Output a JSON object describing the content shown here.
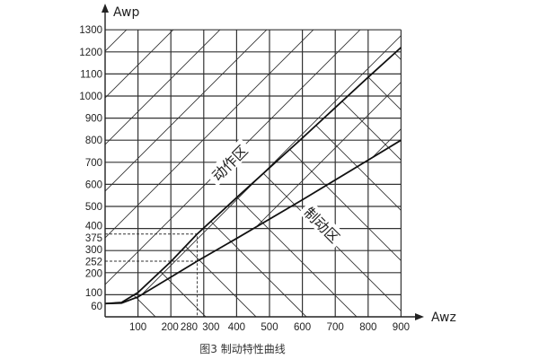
{
  "chart_data": {
    "type": "line",
    "title": "图3  制动特性曲线",
    "xlabel": "Awz",
    "ylabel": "Awp",
    "xlim": [
      0,
      900
    ],
    "ylim": [
      0,
      1300
    ],
    "grid": true,
    "x_ticks": [
      100,
      200,
      280,
      300,
      400,
      500,
      600,
      700,
      800,
      900
    ],
    "y_ticks": [
      60,
      100,
      200,
      252,
      300,
      375,
      400,
      500,
      600,
      700,
      800,
      900,
      1000,
      1100,
      1200,
      1300
    ],
    "series": [
      {
        "x": [
          0,
          50,
          100,
          200,
          280,
          400,
          600,
          800,
          900
        ],
        "y": [
          60,
          65,
          110,
          250,
          375,
          540,
          810,
          1085,
          1220
        ]
      },
      {
        "x": [
          0,
          50,
          100,
          200,
          280,
          400,
          600,
          800,
          900
        ],
        "y": [
          60,
          62,
          90,
          180,
          252,
          355,
          530,
          710,
          800
        ]
      }
    ],
    "reference_point": {
      "x": 280,
      "y_upper": 375,
      "y_lower": 252
    },
    "annotations": [
      "动作区",
      "制动区"
    ]
  }
}
